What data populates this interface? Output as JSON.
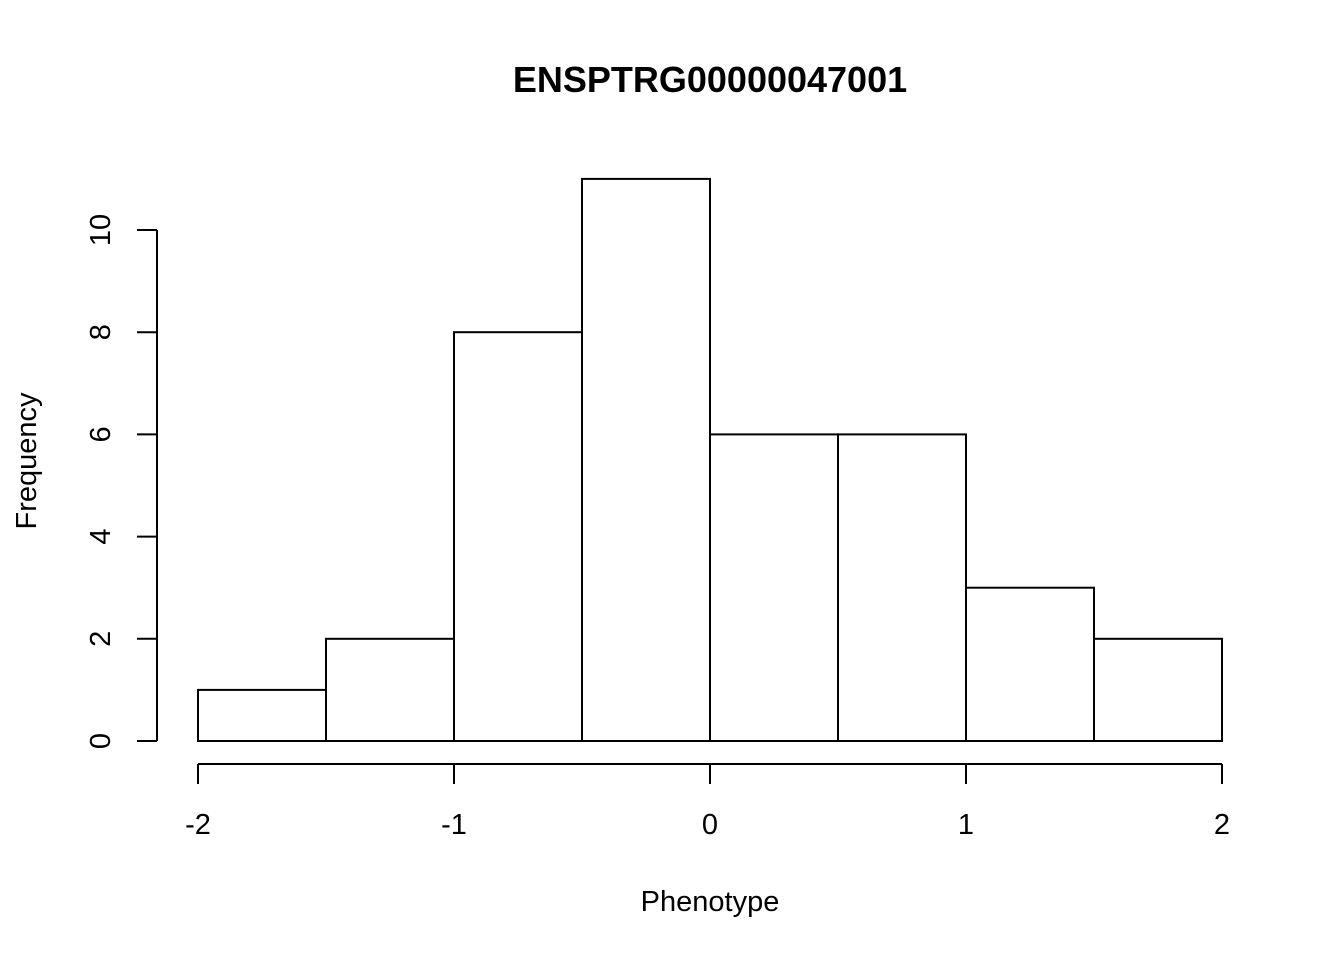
{
  "chart_data": {
    "type": "bar",
    "title": "ENSPTRG00000047001",
    "xlabel": "Phenotype",
    "ylabel": "Frequency",
    "bins": [
      {
        "start": -2.0,
        "end": -1.5,
        "count": 1
      },
      {
        "start": -1.5,
        "end": -1.0,
        "count": 2
      },
      {
        "start": -1.0,
        "end": -0.5,
        "count": 8
      },
      {
        "start": -0.5,
        "end": 0.0,
        "count": 11
      },
      {
        "start": 0.0,
        "end": 0.5,
        "count": 6
      },
      {
        "start": 0.5,
        "end": 1.0,
        "count": 6
      },
      {
        "start": 1.0,
        "end": 1.5,
        "count": 3
      },
      {
        "start": 1.5,
        "end": 2.0,
        "count": 2
      }
    ],
    "xlim": [
      -2,
      2
    ],
    "ylim": [
      0,
      11
    ],
    "x_ticks": [
      -2,
      -1,
      0,
      1,
      2
    ],
    "x_tick_labels": [
      "-2",
      "-1",
      "0",
      "1",
      "2"
    ],
    "y_ticks": [
      0,
      2,
      4,
      6,
      8,
      10
    ],
    "y_tick_labels": [
      "0",
      "2",
      "4",
      "6",
      "8",
      "10"
    ],
    "grid": false,
    "legend": "none"
  }
}
